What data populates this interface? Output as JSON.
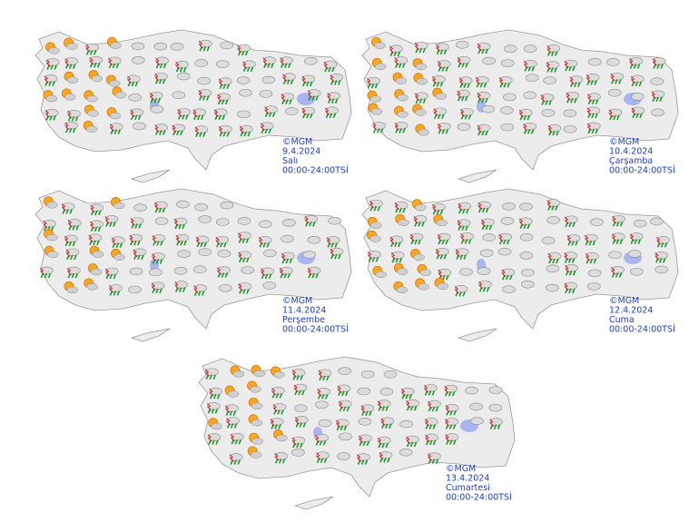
{
  "maps": [
    {
      "copyright": "©MGM",
      "date": "9.4.2024",
      "day": "Salı",
      "hours": "00:00-24:00TSİ"
    },
    {
      "copyright": "©MGM",
      "date": "10.4.2024",
      "day": "Çarşamba",
      "hours": "00:00-24:00TSİ"
    },
    {
      "copyright": "©MGM",
      "date": "11.4.2024",
      "day": "Perşembe",
      "hours": "00:00-24:00TSİ"
    },
    {
      "copyright": "©MGM",
      "date": "12.4.2024",
      "day": "Cuma",
      "hours": "00:00-24:00TSİ"
    },
    {
      "copyright": "©MGM",
      "date": "13.4.2024",
      "day": "Cumartesi",
      "hours": "00:00-24:00TSİ"
    }
  ]
}
